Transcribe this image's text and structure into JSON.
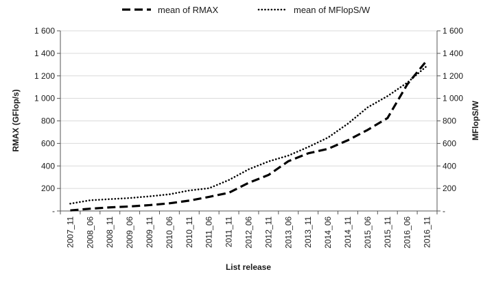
{
  "chart_data": {
    "type": "line",
    "title": "",
    "xlabel": "List release",
    "ylabel": "RMAX  (GFlop/s)",
    "y2label": "MFlopS/W",
    "categories": [
      "2007_11",
      "2008_06",
      "2008_11",
      "2009_06",
      "2009_11",
      "2010_06",
      "2010_11",
      "2011_06",
      "2011_11",
      "2012_06",
      "2012_11",
      "2013_06",
      "2013_11",
      "2014_06",
      "2014_11",
      "2015_06",
      "2015_11",
      "2016_06",
      "2016_11"
    ],
    "ylim": [
      0,
      1600
    ],
    "y2lim": [
      0,
      1600
    ],
    "yticks": [
      0,
      200,
      400,
      600,
      800,
      1000,
      1200,
      1400,
      1600
    ],
    "ytick_labels": [
      "-",
      "200",
      "400",
      "600",
      "800",
      "1 000",
      "1 200",
      "1 400",
      "1 600"
    ],
    "y2ticks": [
      0,
      200,
      400,
      600,
      800,
      1000,
      1200,
      1400,
      1600
    ],
    "y2tick_labels": [
      "-",
      "200",
      "400",
      "600",
      "800",
      "1 000",
      "1 200",
      "1 400",
      "1 600"
    ],
    "grid": "horizontal",
    "legend_position": "top",
    "series": [
      {
        "name": "mean of RMAX",
        "axis": "left",
        "style": "dashed",
        "color": "#000000",
        "values": [
          5,
          20,
          32,
          40,
          52,
          68,
          92,
          125,
          162,
          250,
          320,
          442,
          512,
          552,
          628,
          720,
          825,
          1125,
          1340
        ]
      },
      {
        "name": "mean of MFlopS/W",
        "axis": "right",
        "style": "dotted",
        "color": "#000000",
        "values": [
          65,
          95,
          105,
          115,
          130,
          148,
          182,
          202,
          275,
          370,
          440,
          492,
          568,
          652,
          775,
          920,
          1020,
          1140,
          1290
        ]
      }
    ]
  }
}
